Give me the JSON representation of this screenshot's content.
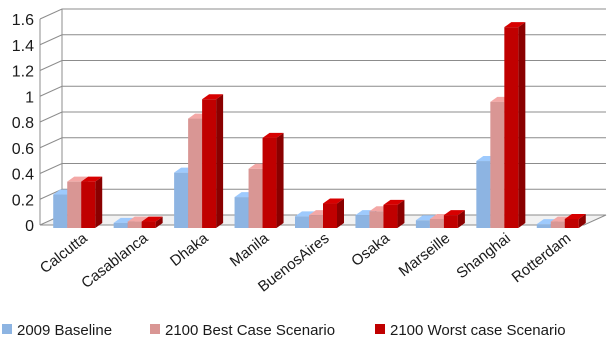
{
  "chart_data": {
    "type": "bar",
    "categories": [
      "Calcutta",
      "Casablanca",
      "Dhaka",
      "Manila",
      "BuenosAires",
      "Osaka",
      "Marseille",
      "Shanghai",
      "Rotterdam"
    ],
    "series": [
      {
        "name": "2009 Baseline",
        "color": "#8db4e2",
        "values": [
          0.26,
          0.04,
          0.43,
          0.24,
          0.09,
          0.1,
          0.06,
          0.52,
          0.03
        ]
      },
      {
        "name": "2100 Best Case Scenario",
        "color": "#d99694",
        "values": [
          0.36,
          0.05,
          0.85,
          0.46,
          0.1,
          0.13,
          0.07,
          0.98,
          0.05
        ]
      },
      {
        "name": "2100 Worst case Scenario",
        "color": "#c00000",
        "values": [
          0.36,
          0.05,
          1.0,
          0.7,
          0.19,
          0.18,
          0.1,
          1.56,
          0.07
        ]
      }
    ],
    "ylim": [
      0,
      1.6
    ],
    "yticks": [
      "0",
      "0.2",
      "0.4",
      "0.6",
      "0.8",
      "1",
      "1.2",
      "1.4",
      "1.6"
    ],
    "title": "",
    "xlabel": "",
    "ylabel": "",
    "grid": true,
    "legend_position": "bottom"
  }
}
